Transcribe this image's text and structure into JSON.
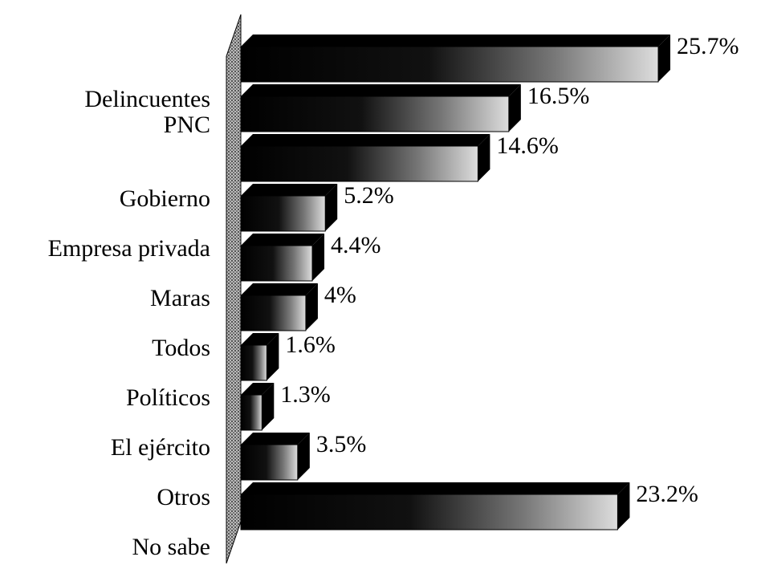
{
  "chart_data": {
    "type": "bar3d",
    "categories": [
      "Delincuentes",
      "PNC",
      "Gobierno",
      "Empresa privada",
      "Maras",
      "Todos",
      "Políticos",
      "El ejército",
      "Otros",
      "No sabe"
    ],
    "values": [
      25.7,
      16.5,
      14.6,
      5.2,
      4.4,
      4,
      1.6,
      1.3,
      3.5,
      23.2
    ],
    "value_labels": [
      "25.7%",
      "16.5%",
      "14.6%",
      "5.2%",
      "4.4%",
      "4%",
      "1.6%",
      "1.3%",
      "3.5%",
      "23.2%"
    ]
  }
}
